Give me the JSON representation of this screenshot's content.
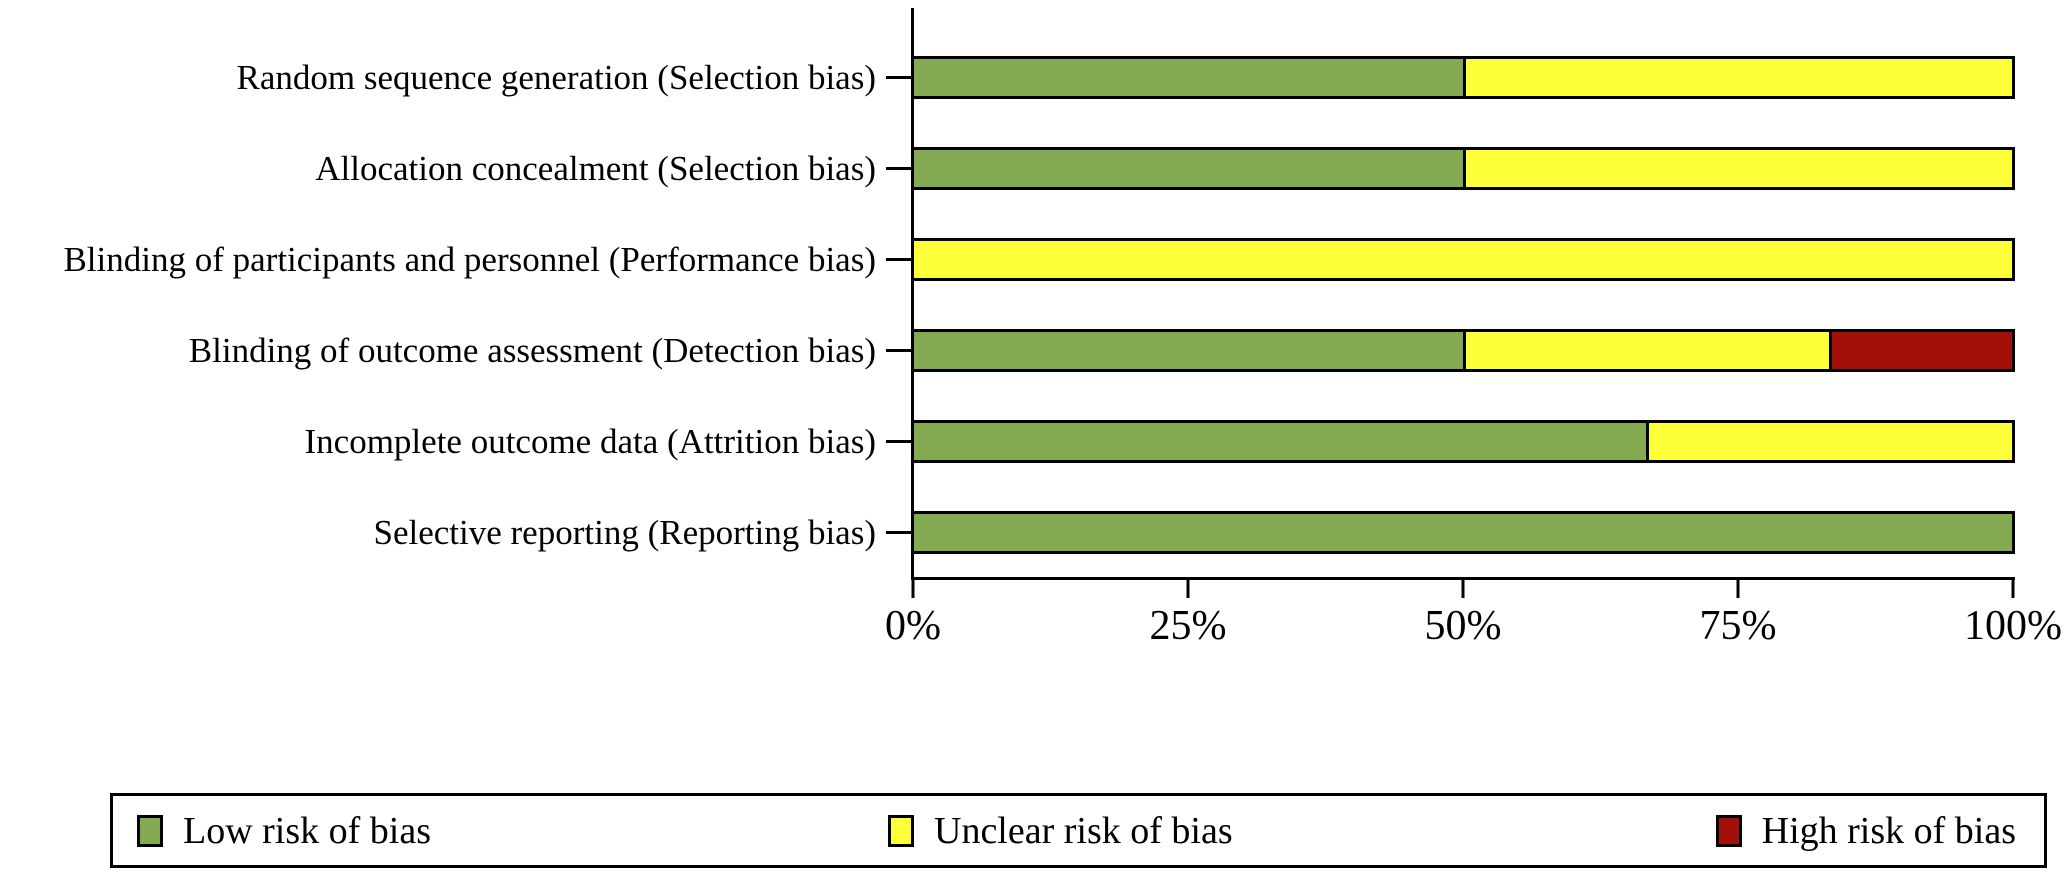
{
  "figure": {
    "background_color": "#ffffff",
    "text_color": "#000000"
  },
  "chart_data": {
    "type": "bar",
    "orientation": "horizontal-stacked",
    "categories": [
      "Random sequence generation (Selection bias)",
      "Allocation concealment (Selection bias)",
      "Blinding of participants and personnel (Performance bias)",
      "Blinding of outcome assessment (Detection bias)",
      "Incomplete outcome data (Attrition bias)",
      "Selective reporting (Reporting bias)"
    ],
    "series": [
      {
        "name": "Low risk of bias",
        "color": "#84aa51",
        "values": [
          50,
          50,
          0,
          50,
          66.7,
          100
        ]
      },
      {
        "name": "Unclear risk of bias",
        "color": "#fdff38",
        "values": [
          50,
          50,
          100,
          33.3,
          33.3,
          0
        ]
      },
      {
        "name": "High risk of bias",
        "color": "#a31008",
        "values": [
          0,
          0,
          0,
          16.7,
          0,
          0
        ]
      }
    ],
    "xlim": [
      0,
      100
    ],
    "x_tick_labels": [
      "0%",
      "25%",
      "50%",
      "75%",
      "100%"
    ],
    "grid": false,
    "legend_position": "bottom"
  }
}
